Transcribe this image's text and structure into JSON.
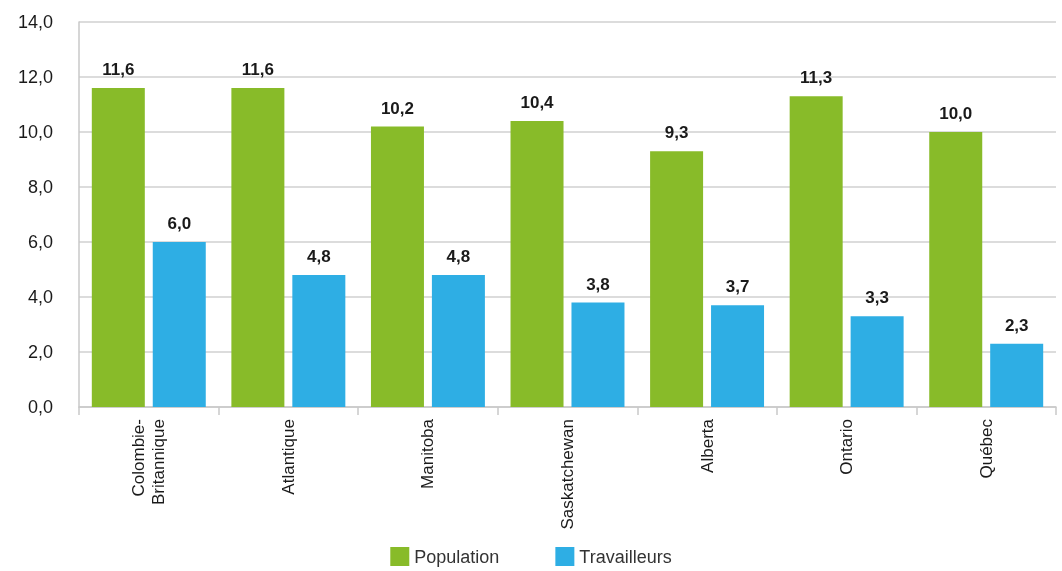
{
  "chart_data": {
    "type": "bar",
    "categories": [
      "Colombie-Britannique",
      "Atlantique",
      "Manitoba",
      "Saskatchewan",
      "Alberta",
      "Ontario",
      "Québec"
    ],
    "series": [
      {
        "name": "Population",
        "color": "#88bb29",
        "values": [
          11.6,
          11.6,
          10.2,
          10.4,
          9.3,
          11.3,
          10.0
        ],
        "value_labels": [
          "11,6",
          "11,6",
          "10,2",
          "10,4",
          "9,3",
          "11,3",
          "10,0"
        ]
      },
      {
        "name": "Travailleurs",
        "color": "#2eaee4",
        "values": [
          6.0,
          4.8,
          4.8,
          3.8,
          3.7,
          3.3,
          2.3
        ],
        "value_labels": [
          "6,0",
          "4,8",
          "4,8",
          "3,8",
          "3,7",
          "3,3",
          "2,3"
        ]
      }
    ],
    "ylim": [
      0,
      14
    ],
    "yticks": [
      {
        "value": 0,
        "label": "0,0"
      },
      {
        "value": 2,
        "label": "2,0"
      },
      {
        "value": 4,
        "label": "4,0"
      },
      {
        "value": 6,
        "label": "6,0"
      },
      {
        "value": 8,
        "label": "8,0"
      },
      {
        "value": 10,
        "label": "10,0"
      },
      {
        "value": 12,
        "label": "12,0"
      },
      {
        "value": 14,
        "label": "14,0"
      }
    ],
    "grid": "y",
    "legend": "bottom"
  }
}
